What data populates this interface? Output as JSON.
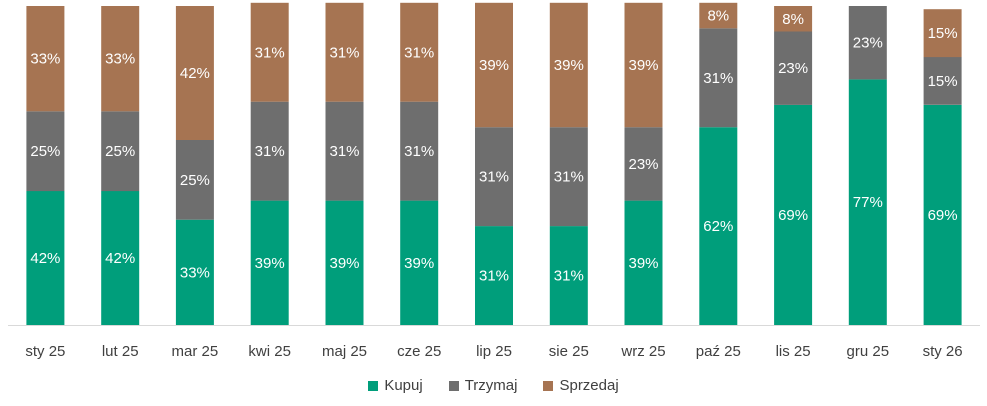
{
  "chart_data": {
    "type": "bar",
    "stacked": true,
    "categories": [
      "sty 25",
      "lut 25",
      "mar 25",
      "kwi 25",
      "maj 25",
      "cze 25",
      "lip 25",
      "sie 25",
      "wrz 25",
      "paź 25",
      "lis 25",
      "gru 25",
      "sty 26"
    ],
    "series": [
      {
        "name": "Kupuj",
        "color": "#009E7B",
        "values": [
          42,
          42,
          33,
          39,
          39,
          39,
          31,
          31,
          39,
          62,
          69,
          77,
          69
        ]
      },
      {
        "name": "Trzymaj",
        "color": "#6E6E6E",
        "values": [
          25,
          25,
          25,
          31,
          31,
          31,
          31,
          31,
          23,
          31,
          23,
          23,
          15
        ]
      },
      {
        "name": "Sprzedaj",
        "color": "#A67452",
        "values": [
          33,
          33,
          42,
          31,
          31,
          31,
          39,
          39,
          39,
          8,
          8,
          0,
          15
        ]
      }
    ],
    "labels": {
      "Kupuj": [
        "42%",
        "42%",
        "33%",
        "39%",
        "39%",
        "39%",
        "31%",
        "31%",
        "39%",
        "62%",
        "69%",
        "77%",
        "69%"
      ],
      "Trzymaj": [
        "25%",
        "25%",
        "25%",
        "31%",
        "31%",
        "31%",
        "31%",
        "31%",
        "23%",
        "31%",
        "23%",
        "23%",
        "15%"
      ],
      "Sprzedaj": [
        "33%",
        "33%",
        "42%",
        "31%",
        "31%",
        "31%",
        "39%",
        "39%",
        "39%",
        "8%",
        "8%",
        "",
        "15%"
      ]
    },
    "ylim": [
      0,
      100
    ],
    "legend_position": "bottom",
    "title": "",
    "xlabel": "",
    "ylabel": ""
  },
  "legend": {
    "kupuj": "Kupuj",
    "trzymaj": "Trzymaj",
    "sprzedaj": "Sprzedaj"
  },
  "colors": {
    "kupuj": "#009E7B",
    "trzymaj": "#6E6E6E",
    "sprzedaj": "#A67452",
    "axis": "#D9D9D9",
    "tick_text": "#404040"
  }
}
